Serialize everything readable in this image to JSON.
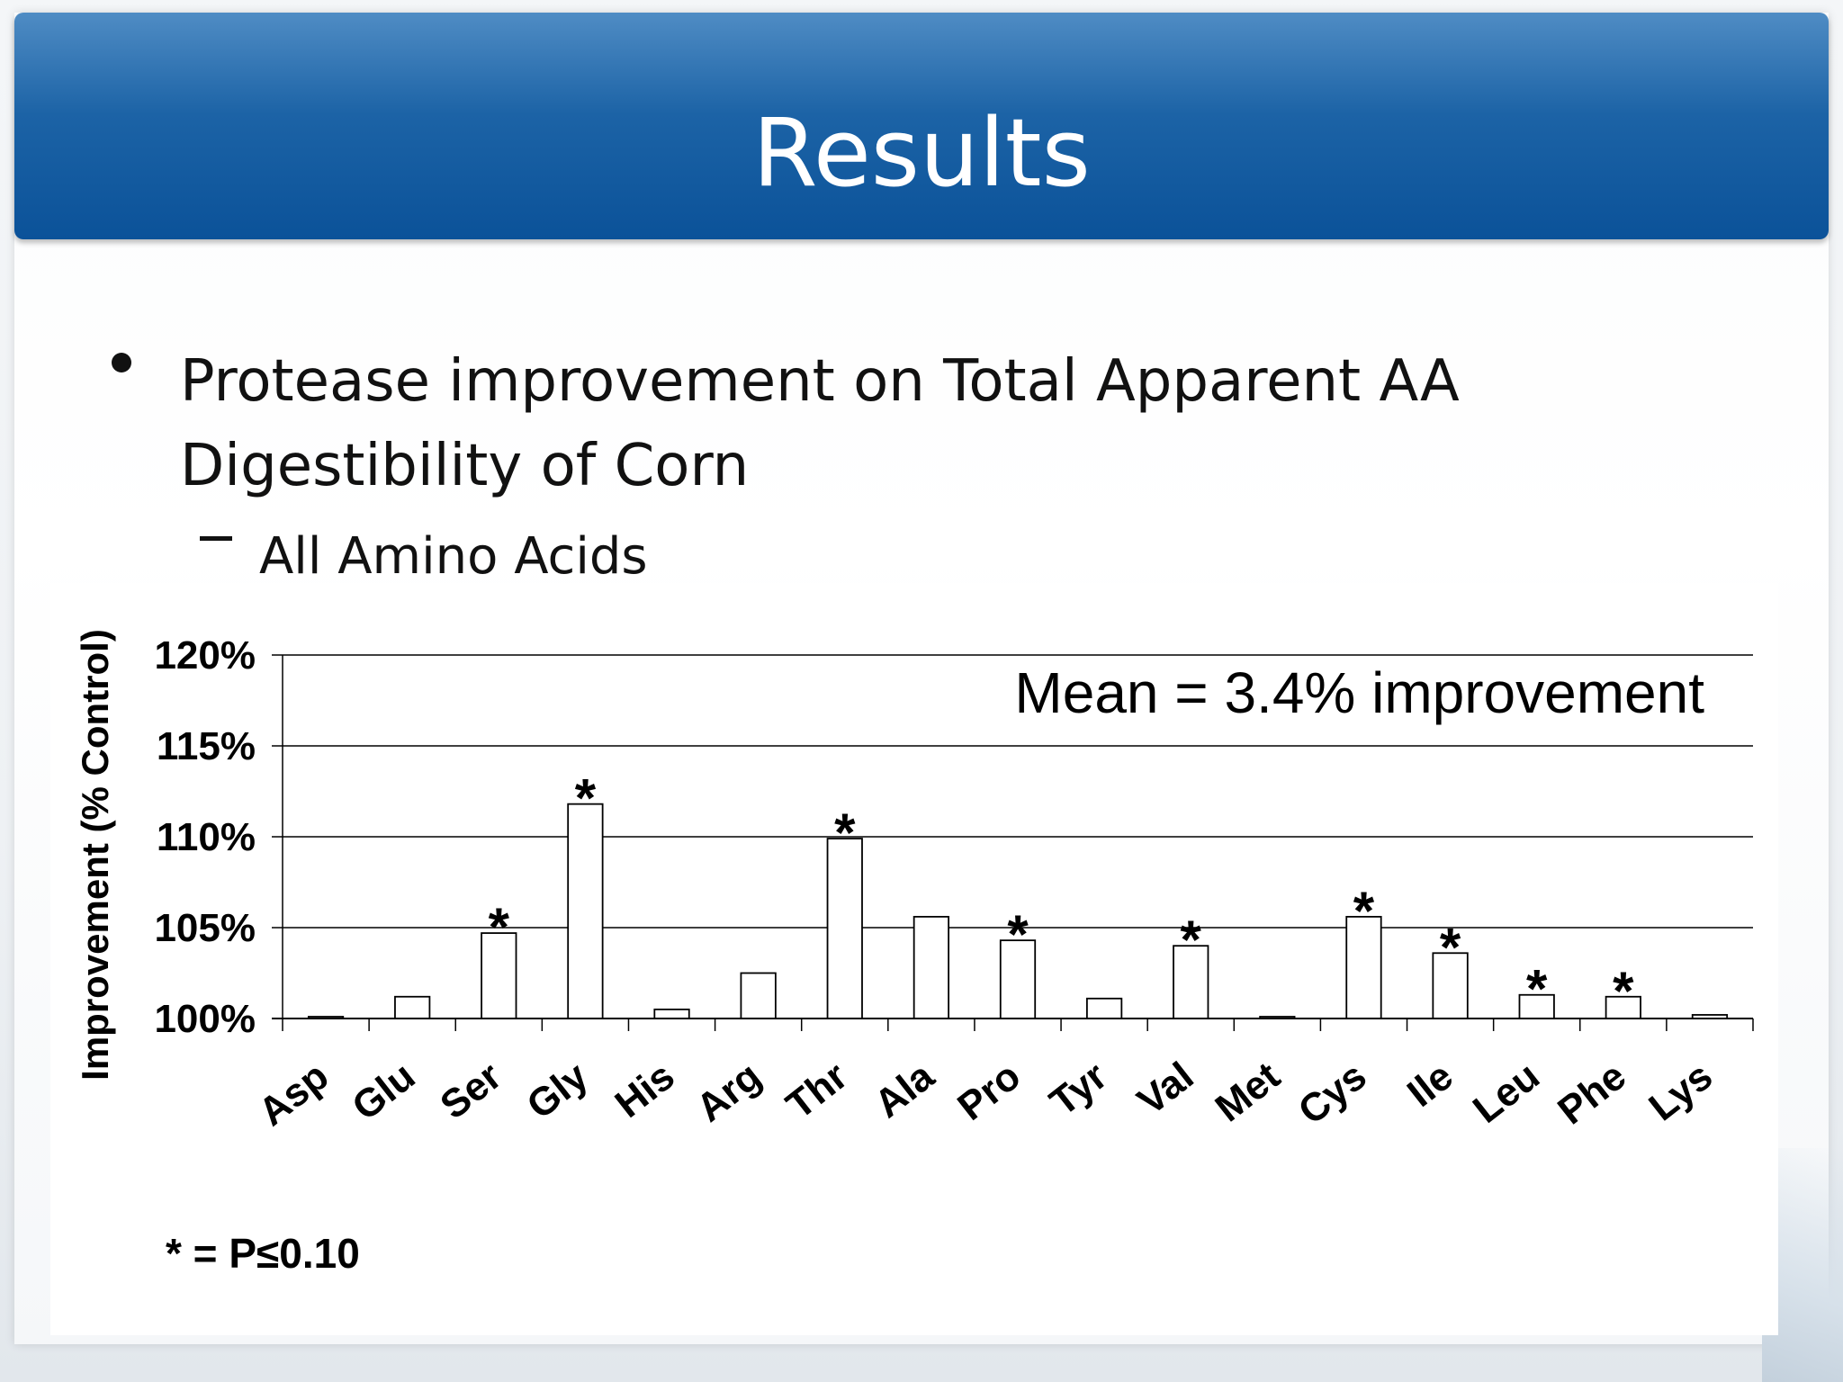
{
  "slide": {
    "title": "Results",
    "bullet_lines": [
      "Protease improvement on Total Apparent AA",
      "Digestibility of Corn"
    ],
    "sub_bullet": "All Amino Acids",
    "footnote": "* = P≤0.10"
  },
  "colors": {
    "title_bar": "#0b5299",
    "title_text": "#ffffff",
    "bar_fill": "#ffffff",
    "bar_stroke": "#000000",
    "gridline": "#000000"
  },
  "chart_data": {
    "type": "bar",
    "ylabel": "Improvement (% Control)",
    "ylim": [
      100,
      120
    ],
    "yticks": [
      100,
      105,
      110,
      115,
      120
    ],
    "ytick_labels": [
      "100%",
      "105%",
      "110%",
      "115%",
      "120%"
    ],
    "grid": true,
    "annotation": "Mean = 3.4% improvement",
    "significance_marker": "*",
    "categories": [
      "Asp",
      "Glu",
      "Ser",
      "Gly",
      "His",
      "Arg",
      "Thr",
      "Ala",
      "Pro",
      "Tyr",
      "Val",
      "Met",
      "Cys",
      "Ile",
      "Leu",
      "Phe",
      "Lys"
    ],
    "values": [
      100.1,
      101.2,
      104.7,
      111.8,
      100.5,
      102.5,
      109.9,
      105.6,
      104.3,
      101.1,
      104.0,
      100.1,
      105.6,
      103.6,
      101.3,
      101.2,
      100.2
    ],
    "significant": [
      false,
      false,
      true,
      true,
      false,
      false,
      true,
      false,
      true,
      false,
      true,
      false,
      true,
      true,
      true,
      true,
      false
    ]
  }
}
